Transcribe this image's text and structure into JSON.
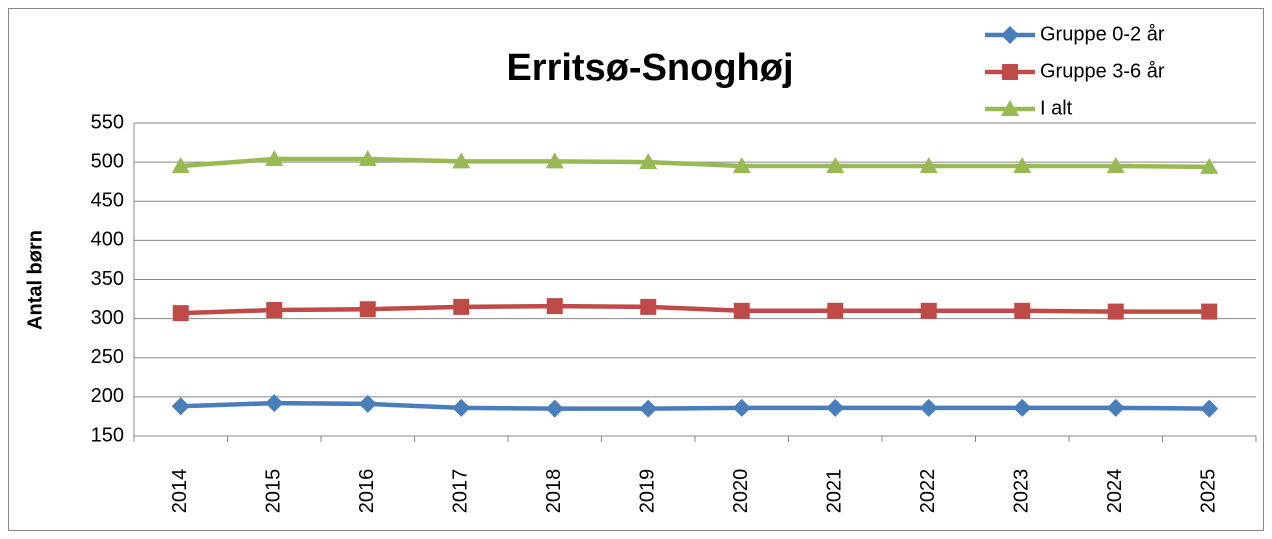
{
  "chart_data": {
    "type": "line",
    "title": "Erritsø-Snoghøj",
    "y_label": "Antal børn",
    "categories": [
      "2014",
      "2015",
      "2016",
      "2017",
      "2018",
      "2019",
      "2020",
      "2021",
      "2022",
      "2023",
      "2024",
      "2025"
    ],
    "series": [
      {
        "name": "Gruppe 0-2 år",
        "color": "#4a7ebb",
        "marker": "diamond",
        "values": [
          188,
          192,
          191,
          186,
          185,
          185,
          186,
          186,
          186,
          186,
          186,
          185
        ]
      },
      {
        "name": "Gruppe 3-6 år",
        "color": "#be4b48",
        "marker": "square",
        "values": [
          307,
          311,
          312,
          315,
          316,
          315,
          310,
          310,
          310,
          310,
          309,
          309
        ]
      },
      {
        "name": "I alt",
        "color": "#98b954",
        "marker": "triangle",
        "values": [
          495,
          504,
          504,
          501,
          501,
          500,
          495,
          495,
          495,
          495,
          495,
          494
        ]
      }
    ],
    "ylim": [
      150,
      550
    ],
    "yticks": [
      150,
      200,
      250,
      300,
      350,
      400,
      450,
      500,
      550
    ],
    "grid": true,
    "legend": "top-right"
  }
}
